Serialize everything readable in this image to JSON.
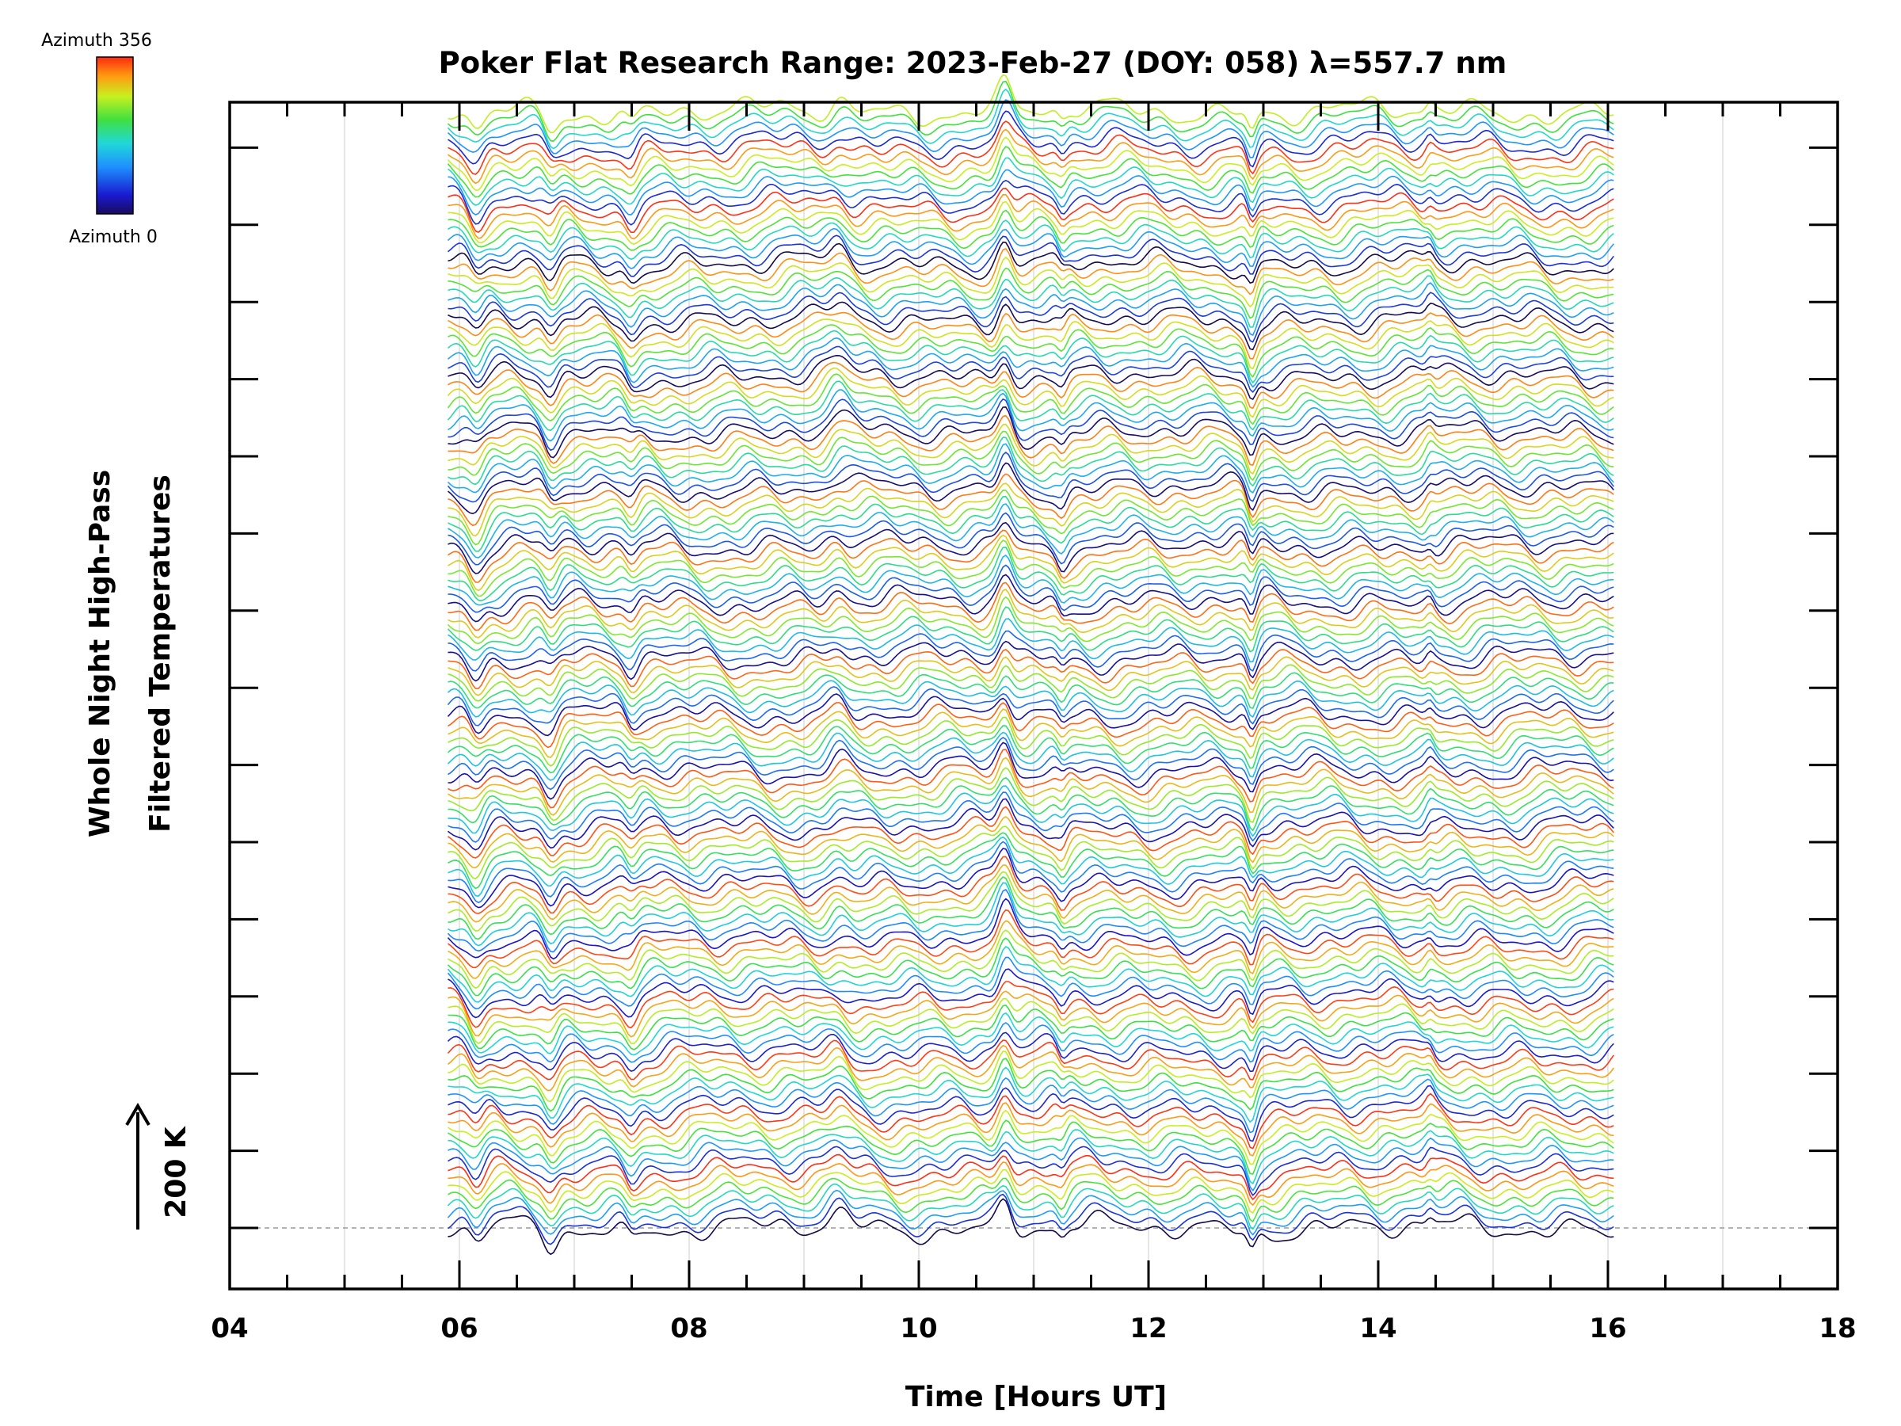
{
  "chart_data": {
    "type": "line",
    "title": "Poker Flat Research Range: 2023-Feb-27 (DOY: 058) λ=557.7 nm",
    "xlabel": "Time [Hours UT]",
    "ylabel_line1": "Whole Night High-Pass",
    "ylabel_line2": "Filtered Temperatures",
    "xlim": [
      4,
      18
    ],
    "x_ticks": [
      "04",
      "06",
      "08",
      "10",
      "12",
      "14",
      "16",
      "18"
    ],
    "x_tick_values": [
      4,
      6,
      8,
      10,
      12,
      14,
      16,
      18
    ],
    "data_range": [
      5.9,
      16.05
    ],
    "grid_x": true,
    "scale_bar": "200 K",
    "colorbar": {
      "top_label": "Azimuth 356",
      "bottom_label": "Azimuth 0",
      "colormap": "rainbow"
    },
    "series_count": 140,
    "azimuth_range": [
      0,
      356
    ],
    "colors": {
      "axis": "#000000",
      "grid": "#d9d9d9",
      "baseline": "#9a9a9a"
    }
  }
}
